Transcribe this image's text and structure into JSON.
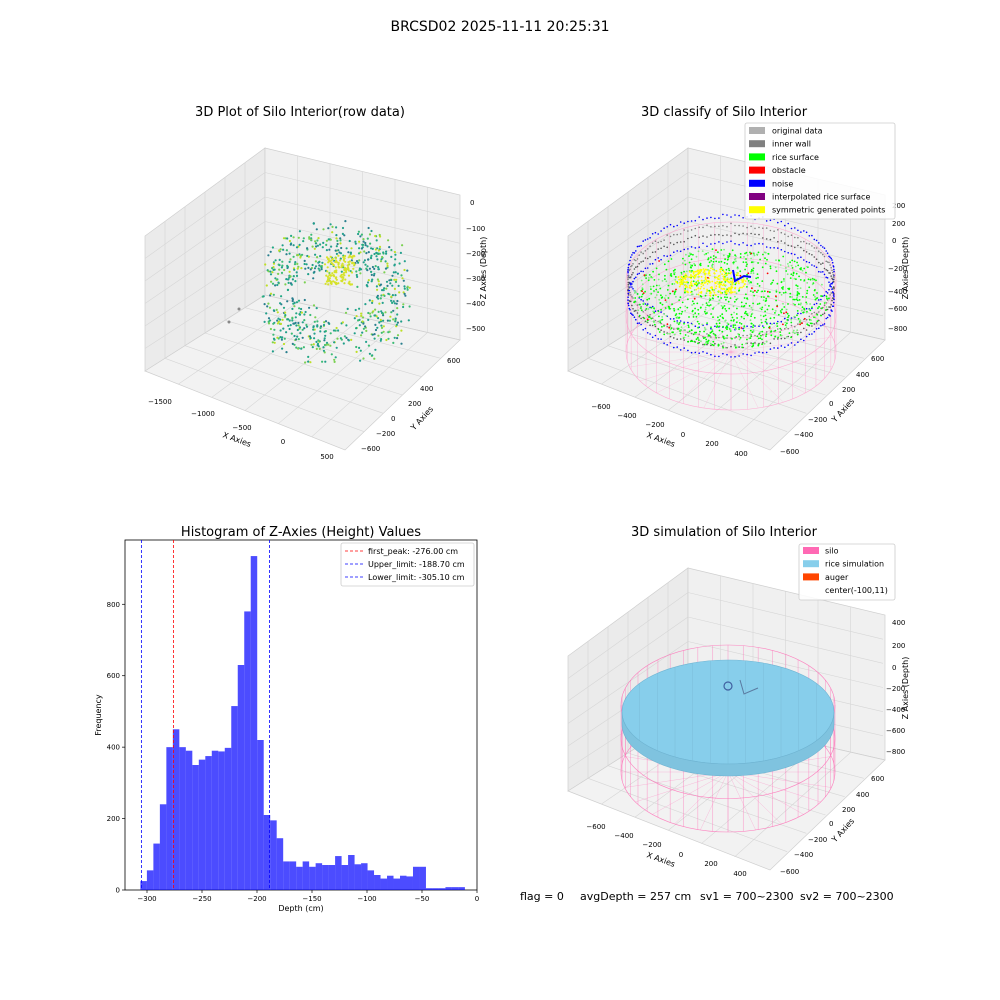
{
  "figure": {
    "suptitle": "BRCSD02 2025-11-11 20:25:31",
    "status_line": {
      "flag": "flag = 0",
      "avg_depth": "avgDepth = 257 cm",
      "sv1": "sv1 = 700~2300",
      "sv2": "sv2 = 700~2300"
    }
  },
  "panel_raw": {
    "title": "3D Plot of Silo Interior(row data)",
    "xlabel": "X Axies",
    "ylabel": "Y Axies",
    "zlabel": "Z Axies (Depth)",
    "x_ticks": [
      "−1500",
      "−1000",
      "−500",
      "0",
      "500"
    ],
    "y_ticks": [
      "600",
      "400",
      "200",
      "0",
      "−200",
      "−400",
      "−600"
    ],
    "z_ticks": [
      "0",
      "−100",
      "−200",
      "−300",
      "−400",
      "−500"
    ]
  },
  "panel_classify": {
    "title": "3D classify of Silo Interior",
    "xlabel": "X Axies",
    "ylabel": "Y Axies",
    "zlabel": "Z Axies (Depth)",
    "x_ticks": [
      "−600",
      "−400",
      "−200",
      "0",
      "200",
      "400"
    ],
    "y_ticks": [
      "600",
      "400",
      "200",
      "0",
      "−200",
      "−400",
      "−600"
    ],
    "z_ticks": [
      "200",
      "0",
      "−200",
      "−400",
      "−600",
      "−800"
    ],
    "legend": [
      {
        "label": "original data",
        "color": "#b0b0b0"
      },
      {
        "label": "inner wall",
        "color": "#808080"
      },
      {
        "label": "rice surface",
        "color": "#00ff00"
      },
      {
        "label": "obstacle",
        "color": "#ff0000"
      },
      {
        "label": "noise",
        "color": "#0000ff"
      },
      {
        "label": "interpolated rice surface",
        "color": "#800080"
      },
      {
        "label": "symmetric generated points",
        "color": "#ffff00"
      }
    ]
  },
  "panel_sim": {
    "title": "3D simulation of Silo Interior",
    "xlabel": "X Axies",
    "ylabel": "Y Axies",
    "zlabel": "Z Axies (Depth)",
    "x_ticks": [
      "−600",
      "−400",
      "−200",
      "0",
      "200",
      "400"
    ],
    "y_ticks": [
      "600",
      "400",
      "200",
      "0",
      "−200",
      "−400",
      "−600"
    ],
    "z_ticks": [
      "400",
      "200",
      "0",
      "−200",
      "−400",
      "−600",
      "−800"
    ],
    "legend": [
      {
        "label": "silo",
        "color": "#ff69b4"
      },
      {
        "label": "rice simulation",
        "color": "#87ceeb"
      },
      {
        "label": "auger",
        "color": "#ff4500"
      },
      {
        "label": "center(-100,11)",
        "color": ""
      }
    ]
  },
  "chart_data": {
    "type": "bar",
    "title": "Histogram of Z-Axies (Height) Values",
    "xlabel": "Depth (cm)",
    "ylabel": "Frequency",
    "xlim": [
      -320,
      0
    ],
    "ylim": [
      0,
      980
    ],
    "x_ticks": [
      -300,
      -250,
      -200,
      -150,
      -100,
      -50,
      0
    ],
    "y_ticks": [
      0,
      200,
      400,
      600,
      800
    ],
    "bar_color": "#0000ff",
    "bins_start": -306,
    "bin_width": 5.9,
    "values": [
      25,
      55,
      130,
      240,
      400,
      450,
      400,
      390,
      350,
      365,
      375,
      390,
      388,
      398,
      515,
      630,
      780,
      935,
      420,
      210,
      195,
      145,
      80,
      80,
      65,
      80,
      65,
      75,
      70,
      70,
      95,
      70,
      98,
      72,
      75,
      55,
      42,
      32,
      40,
      32,
      40,
      38,
      65,
      65,
      5,
      5,
      5,
      8,
      8,
      8
    ],
    "lines": [
      {
        "label": "first_peak: -276.00 cm",
        "x": -276.0,
        "color": "#ff0000"
      },
      {
        "label": "Upper_limit: -188.70 cm",
        "x": -188.7,
        "color": "#0000ff"
      },
      {
        "label": "Lower_limit: -305.10 cm",
        "x": -305.1,
        "color": "#0000ff"
      }
    ]
  }
}
